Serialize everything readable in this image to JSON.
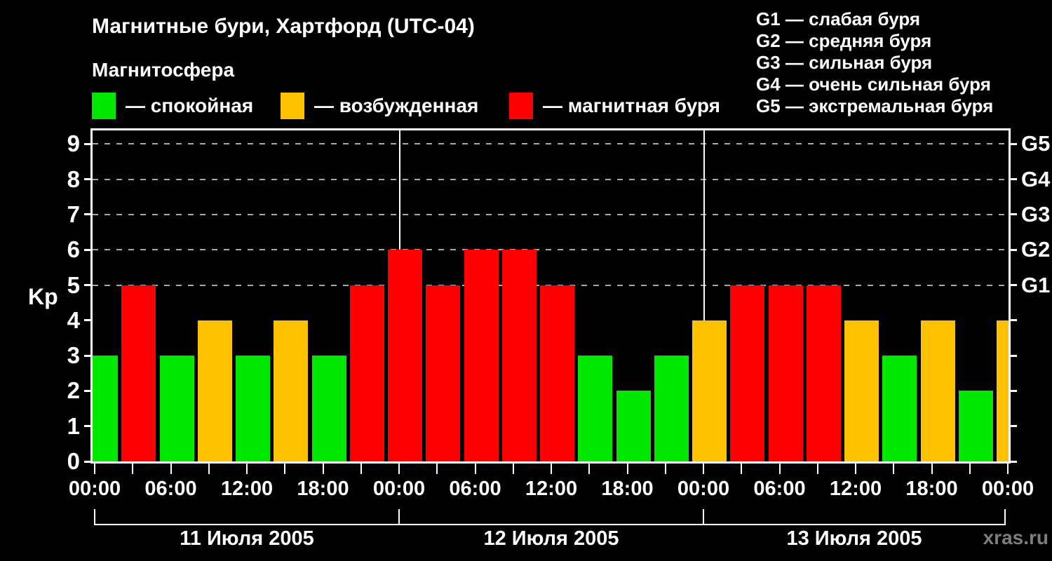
{
  "title": "Магнитные бури, Хартфорд (UTC-04)",
  "subtitle": "Магнитосфера",
  "legend_items": [
    {
      "key": "quiet",
      "label": "— спокойная",
      "color": "#00e800"
    },
    {
      "key": "unsettled",
      "label": "— возбужденная",
      "color": "#ffc200"
    },
    {
      "key": "storm",
      "label": "— магнитная буря",
      "color": "#ff0000"
    }
  ],
  "g_scale_legend": [
    {
      "level": "G1",
      "label": "G1 — слабая буря"
    },
    {
      "level": "G2",
      "label": "G2 — средняя буря"
    },
    {
      "level": "G3",
      "label": "G3 — сильная буря"
    },
    {
      "level": "G4",
      "label": "G4 — очень сильная буря"
    },
    {
      "level": "G5",
      "label": "G5 — экстремальная буря"
    }
  ],
  "watermark": "xras.ru",
  "chart_data": {
    "type": "bar",
    "title": "Магнитные бури, Хартфорд (UTC-04)",
    "xlabel": "",
    "ylabel": "Kp",
    "ylim": [
      0,
      9.4
    ],
    "y_ticks": [
      0,
      1,
      2,
      3,
      4,
      5,
      6,
      7,
      8,
      9
    ],
    "grid": "dashed horizontal lines at Kp 5..9, vertical white divider at each day start",
    "legend_position": "top",
    "bar_interval_hours": 3,
    "g_levels": [
      {
        "kp": 5,
        "label": "G1"
      },
      {
        "kp": 6,
        "label": "G2"
      },
      {
        "kp": 7,
        "label": "G3"
      },
      {
        "kp": 8,
        "label": "G4"
      },
      {
        "kp": 9,
        "label": "G5"
      }
    ],
    "x_hour_labels": [
      "00:00",
      "06:00",
      "12:00",
      "18:00"
    ],
    "days": [
      {
        "date": "11 Июля 2005",
        "kp": [
          3,
          5,
          3,
          4,
          3,
          4,
          3,
          5
        ]
      },
      {
        "date": "12 Июля 2005",
        "kp": [
          6,
          5,
          6,
          6,
          5,
          3,
          2,
          3
        ]
      },
      {
        "date": "13 Июля 2005",
        "kp": [
          4,
          5,
          5,
          5,
          4,
          3,
          4,
          2
        ]
      }
    ],
    "next_day_partial_kp": 4,
    "color_rules": {
      "quiet_max": 3,
      "unsettled_max": 4,
      "storm_min": 5
    }
  }
}
